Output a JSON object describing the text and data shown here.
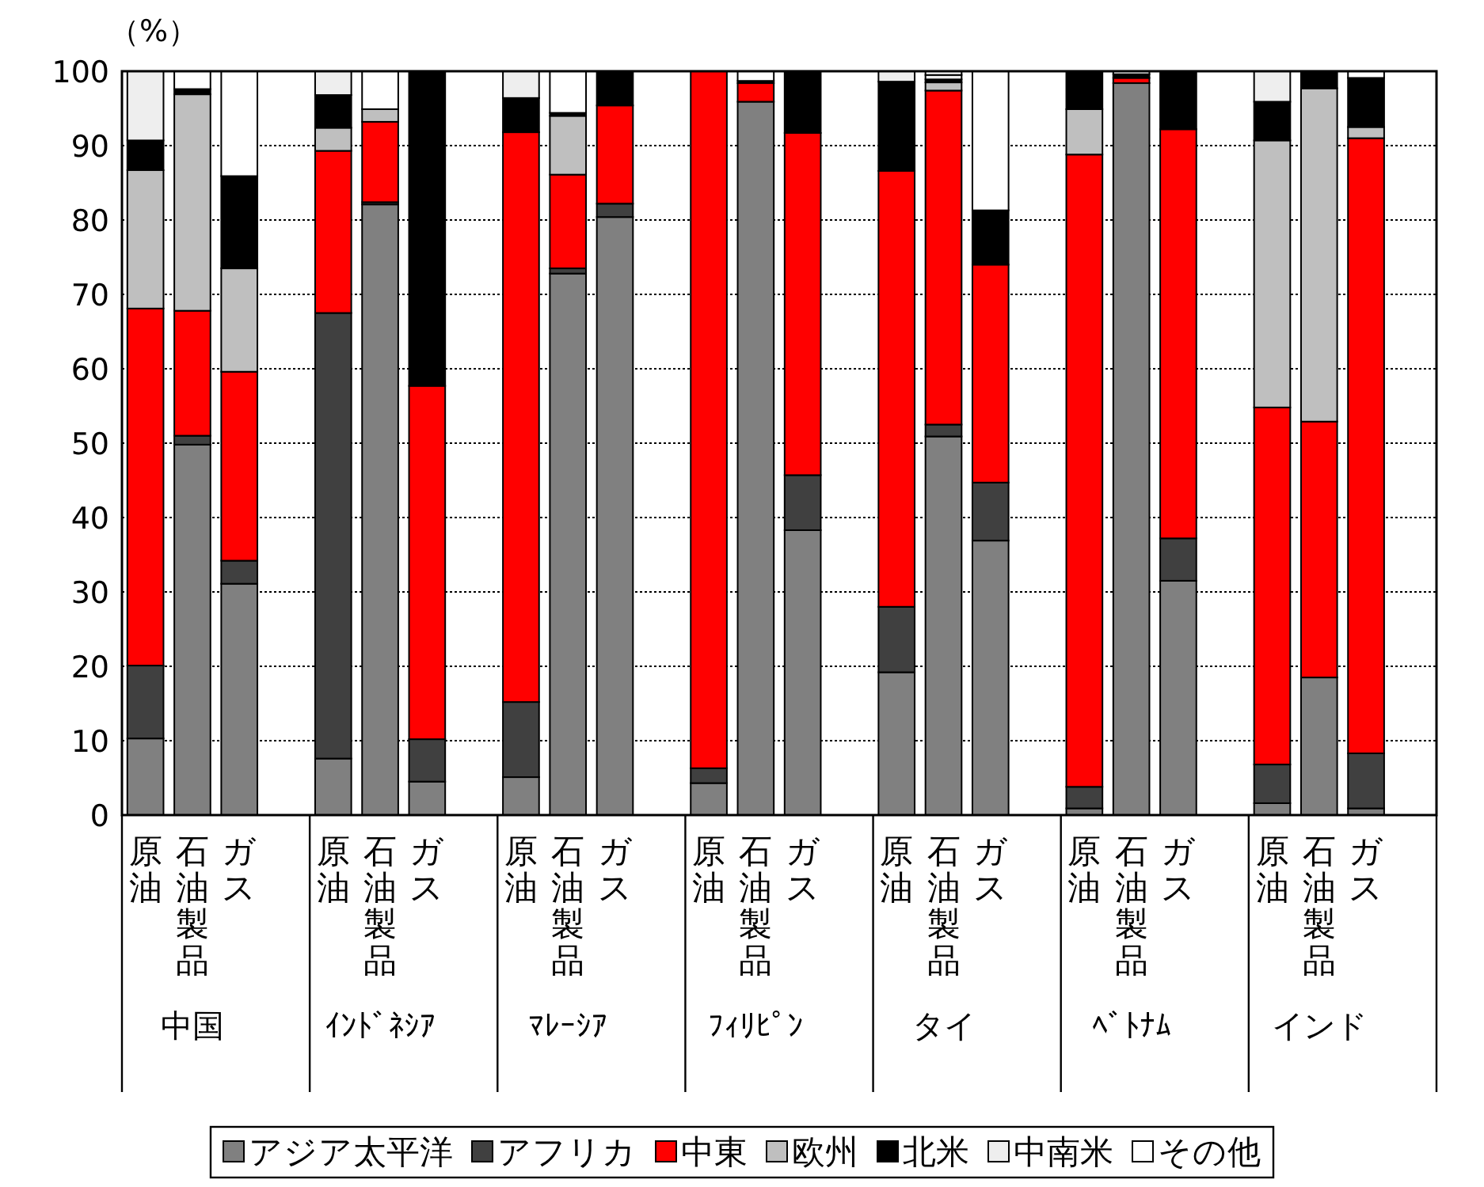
{
  "chart_data": {
    "type": "bar",
    "stacked": true,
    "ylabel": "（%）",
    "categories": [
      "原油",
      "石油製品",
      "ガス",
      null,
      "原油",
      "石油製品",
      "ガス",
      null,
      "原油",
      "石油製品",
      "ガス",
      null,
      "原油",
      "石油製品",
      "ガス",
      null,
      "原油",
      "石油製品",
      "ガス",
      null,
      "原油",
      "石油製品",
      "ガス",
      null,
      "原油",
      "石油製品",
      "ガス",
      null
    ],
    "annotations": [
      "中国",
      "ｲﾝﾄﾞﾈｼｱ",
      "ﾏﾚｰｼｱ",
      "ﾌｨﾘﾋﾟﾝ",
      "タイ",
      "ﾍﾞﾄﾅﾑ",
      "インド"
    ],
    "ylim": [
      0,
      100
    ],
    "yticks": [
      0,
      10,
      20,
      30,
      40,
      50,
      60,
      70,
      80,
      90,
      100
    ],
    "grid": "y",
    "legend": "bottom",
    "series": [
      {
        "name": "アジア太平洋",
        "color": "#808080",
        "values": [
          10.3,
          49.8,
          31.1,
          null,
          7.6,
          82.1,
          4.5,
          null,
          5.1,
          72.8,
          80.4,
          null,
          4.3,
          95.9,
          38.3,
          null,
          19.2,
          50.9,
          36.9,
          null,
          0.9,
          98.4,
          31.5,
          null,
          1.6,
          18.5,
          0.9,
          null
        ]
      },
      {
        "name": "アフリカ",
        "color": "#404040",
        "values": [
          9.8,
          1.2,
          3.1,
          null,
          59.9,
          0.3,
          5.7,
          null,
          10.1,
          0.7,
          1.8,
          null,
          2.0,
          null,
          7.4,
          null,
          8.8,
          1.6,
          7.8,
          null,
          2.9,
          null,
          5.7,
          null,
          5.2,
          null,
          7.4,
          null
        ]
      },
      {
        "name": "中東",
        "color": "#ff0000",
        "values": [
          48.0,
          16.8,
          25.4,
          null,
          21.8,
          10.8,
          47.5,
          null,
          76.6,
          12.6,
          13.2,
          null,
          93.7,
          2.5,
          46.0,
          null,
          58.6,
          44.9,
          29.3,
          null,
          85.0,
          0.7,
          55.0,
          null,
          48.0,
          34.4,
          82.7,
          null
        ]
      },
      {
        "name": "欧州",
        "color": "#bfbfbf",
        "values": [
          18.6,
          29.1,
          13.9,
          null,
          3.1,
          1.7,
          null,
          null,
          null,
          7.9,
          null,
          null,
          null,
          null,
          null,
          null,
          null,
          1.1,
          null,
          null,
          6.1,
          null,
          null,
          null,
          35.9,
          44.8,
          1.5,
          null
        ]
      },
      {
        "name": "北米",
        "color": "#000000",
        "values": [
          4.0,
          0.7,
          12.4,
          null,
          4.4,
          null,
          42.3,
          null,
          4.6,
          0.4,
          4.6,
          null,
          null,
          0.3,
          8.3,
          null,
          12.0,
          0.4,
          7.3,
          null,
          5.1,
          0.5,
          7.8,
          null,
          5.2,
          2.3,
          6.6,
          null
        ]
      },
      {
        "name": "中南米",
        "color": "#eeeeee",
        "values": [
          9.3,
          null,
          null,
          null,
          3.2,
          null,
          null,
          null,
          3.6,
          null,
          null,
          null,
          null,
          null,
          null,
          null,
          1.4,
          0.6,
          null,
          null,
          null,
          null,
          null,
          null,
          4.1,
          null,
          null,
          null
        ]
      },
      {
        "name": "その他",
        "color": "#ffffff",
        "values": [
          null,
          2.4,
          14.1,
          null,
          null,
          5.1,
          null,
          null,
          null,
          5.6,
          null,
          null,
          null,
          1.3,
          null,
          null,
          null,
          0.5,
          18.7,
          null,
          null,
          0.4,
          null,
          null,
          null,
          null,
          0.9,
          null
        ]
      }
    ]
  }
}
